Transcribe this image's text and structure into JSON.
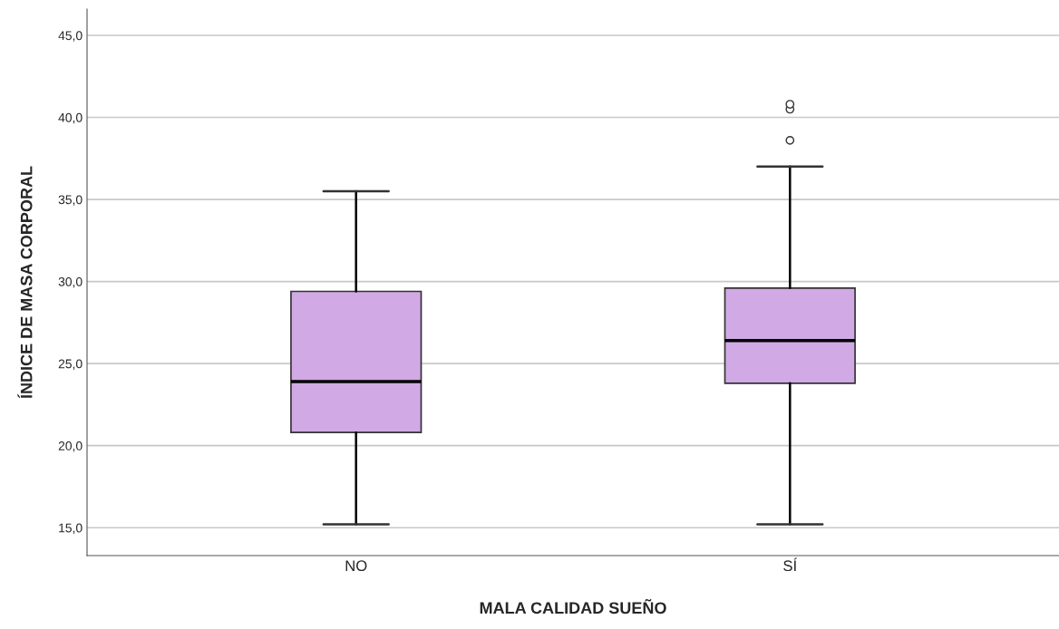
{
  "chart_data": {
    "type": "box",
    "xlabel": "MALA CALIDAD SUEÑO",
    "ylabel": "ÍNDICE DE MASA CORPORAL",
    "categories": [
      "NO",
      "SÍ"
    ],
    "boxes": [
      {
        "low": 15.2,
        "q1": 20.8,
        "median": 23.9,
        "q3": 29.4,
        "high": 35.5
      },
      {
        "low": 15.2,
        "q1": 23.8,
        "median": 26.4,
        "q3": 29.6,
        "high": 37.0,
        "outliers": [
          38.6,
          40.5,
          40.8
        ]
      }
    ],
    "color": "#d1a9e4",
    "ylim": [
      13.3,
      46.6
    ],
    "yticks": [
      {
        "value": 15,
        "label": "15,0"
      },
      {
        "value": 20,
        "label": "20,0"
      },
      {
        "value": 25,
        "label": "25,0"
      },
      {
        "value": 30,
        "label": "30,0"
      },
      {
        "value": 35,
        "label": "35,0"
      },
      {
        "value": 40,
        "label": "40,0"
      },
      {
        "value": 45,
        "label": "45,0"
      }
    ],
    "grid": "y"
  }
}
